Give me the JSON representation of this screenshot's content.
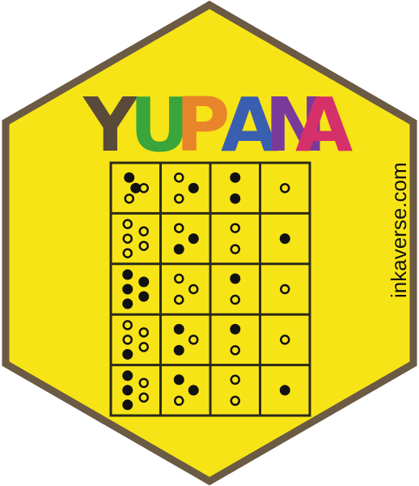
{
  "badge": {
    "title_letters": [
      {
        "char": "Y",
        "color": "#5a4a3a"
      },
      {
        "char": "U",
        "color": "#3aa53a"
      },
      {
        "char": "P",
        "color": "#e8852a"
      },
      {
        "char": "A",
        "color": "#3a5fb0"
      },
      {
        "char": "N",
        "color": "#7a3a9a"
      },
      {
        "char": "A",
        "color": "#d6306a"
      }
    ],
    "website": "inkaverse.com",
    "colors": {
      "background": "#f7e417",
      "border": "#6b5a44",
      "grid_line": "#2b2a1a",
      "dot": "#111111"
    }
  },
  "yupana_grid": {
    "rows": [
      [
        [
          "filled",
          "hollow",
          "hollow",
          "filled"
        ],
        [
          "hollow",
          "filled",
          "hollow"
        ],
        [
          "filled",
          "filled"
        ],
        [
          "hollow"
        ]
      ],
      [
        [
          "hollow",
          "hollow",
          "hollow",
          "hollow",
          "hollow"
        ],
        [
          "hollow",
          "filled",
          "filled"
        ],
        [
          "hollow",
          "hollow"
        ],
        [
          "filled"
        ]
      ],
      [
        [
          "filled",
          "filled",
          "filled",
          "filled",
          "filled"
        ],
        [
          "hollow",
          "hollow",
          "hollow"
        ],
        [
          "filled",
          "hollow"
        ],
        [
          "hollow"
        ]
      ],
      [
        [
          "hollow",
          "hollow",
          "hollow",
          "hollow",
          "filled"
        ],
        [
          "filled",
          "hollow",
          "filled"
        ],
        [
          "filled",
          "hollow"
        ],
        [
          "hollow"
        ]
      ],
      [
        [
          "filled",
          "hollow",
          "filled",
          "hollow",
          "filled"
        ],
        [
          "filled",
          "filled",
          "hollow"
        ],
        [
          "hollow",
          "hollow"
        ],
        [
          "filled"
        ]
      ]
    ]
  }
}
